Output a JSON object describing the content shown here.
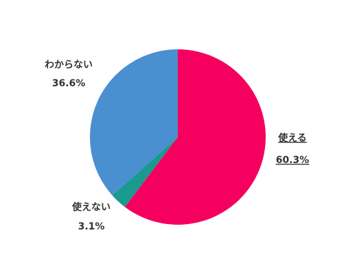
{
  "chart_data": {
    "type": "pie",
    "categories": [
      "使える",
      "使えない",
      "わからない"
    ],
    "values": [
      60.3,
      3.1,
      36.6
    ],
    "value_labels": [
      "60.3%",
      "3.1%",
      "36.6%"
    ],
    "colors": [
      "#f5005f",
      "#1a9a8f",
      "#4a8fd0"
    ],
    "highlight": 0
  }
}
